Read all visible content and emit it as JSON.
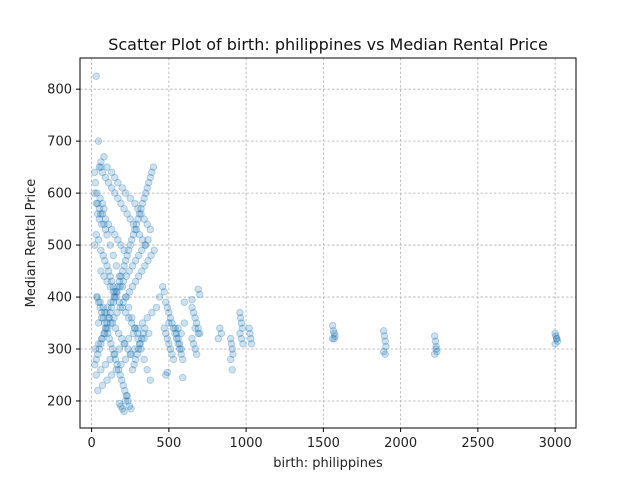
{
  "chart_data": {
    "type": "scatter",
    "title": "Scatter Plot of birth: philippines vs Median Rental Price",
    "xlabel": "birth: philippines",
    "ylabel": "Median Rental Price",
    "xlim": [
      -75,
      3135
    ],
    "ylim": [
      148,
      860
    ],
    "xticks": [
      0,
      500,
      1000,
      1500,
      2000,
      2500,
      3000
    ],
    "yticks": [
      200,
      300,
      400,
      500,
      600,
      700,
      800
    ],
    "grid": true,
    "marker_color": "#1f77b4",
    "marker_alpha": 0.22,
    "series": [
      {
        "x": [
          30,
          45,
          60,
          20,
          25,
          35,
          55,
          70,
          80,
          40,
          50,
          65,
          90,
          30,
          45,
          20,
          60,
          75,
          85,
          100,
          110,
          120,
          130,
          140,
          150,
          35,
          45,
          55,
          65,
          75,
          85,
          95,
          105,
          115,
          125,
          135,
          145,
          155,
          165,
          175,
          185,
          195,
          205,
          215,
          225,
          235,
          245,
          255,
          265,
          275,
          285,
          295,
          305,
          315,
          325,
          335,
          345,
          20,
          40,
          60,
          80,
          100,
          120,
          140,
          160,
          180,
          200,
          220,
          240,
          260,
          280,
          300,
          320,
          340,
          360,
          380,
          50,
          70,
          90,
          110,
          130,
          150,
          170,
          190,
          210,
          230,
          250,
          270,
          290,
          310,
          330,
          350,
          25,
          45,
          65,
          85,
          105,
          125,
          145,
          165,
          185,
          205,
          225,
          245,
          265,
          285,
          305,
          325,
          345,
          365,
          385,
          405,
          30,
          60,
          90,
          120,
          150,
          180,
          210,
          240,
          270,
          300,
          330,
          360,
          390,
          420,
          60,
          80,
          100,
          120,
          140,
          160,
          180,
          200,
          220,
          240,
          260,
          280,
          300,
          40,
          70,
          100,
          130,
          160,
          190,
          220,
          250,
          280,
          310,
          340,
          370,
          30,
          50,
          70,
          90,
          110,
          130,
          150,
          170,
          190,
          210,
          35,
          55,
          75,
          95,
          115,
          135,
          155,
          175,
          195,
          215,
          235,
          255,
          20,
          30,
          40,
          50,
          60,
          70,
          80,
          90,
          100,
          110,
          120,
          130,
          140,
          150,
          160,
          170,
          180,
          190,
          200,
          210,
          220,
          230,
          240,
          250,
          260,
          270,
          280,
          290,
          300,
          310,
          320,
          330,
          340,
          350,
          360,
          370,
          380,
          390,
          400,
          45,
          65,
          85,
          105,
          125,
          145,
          165,
          185,
          205,
          225,
          245,
          265,
          285,
          305,
          325,
          345,
          365,
          180,
          190,
          200,
          210,
          220,
          230,
          60,
          80,
          100,
          130,
          150,
          170,
          200,
          220,
          250,
          280,
          300,
          320,
          340,
          360,
          380,
          440,
          460,
          470,
          480,
          490,
          500,
          510,
          520,
          530,
          540,
          550,
          560,
          570,
          580,
          590,
          600,
          470,
          480,
          490,
          500,
          510,
          520,
          530,
          540,
          550,
          560,
          570,
          580,
          590,
          480,
          490,
          500,
          560,
          580,
          600,
          650,
          660,
          670,
          680,
          690,
          700,
          650,
          660,
          670,
          680,
          690,
          700,
          650,
          670,
          690,
          820,
          830,
          840,
          900,
          905,
          910,
          915,
          900,
          910,
          960,
          965,
          970,
          975,
          960,
          970,
          980,
          1020,
          1025,
          1030,
          1035,
          1560,
          1565,
          1570,
          1575,
          1560,
          1570,
          1890,
          1895,
          1900,
          1905,
          1890,
          1900,
          2220,
          2225,
          2230,
          2235,
          2220,
          2230,
          3000,
          3005,
          3010,
          3015,
          3000,
          3010
        ],
        "y": [
          825,
          700,
          650,
          640,
          620,
          600,
          590,
          580,
          570,
          560,
          550,
          540,
          530,
          520,
          510,
          500,
          490,
          480,
          470,
          460,
          450,
          440,
          430,
          420,
          410,
          400,
          390,
          380,
          370,
          360,
          350,
          340,
          330,
          320,
          310,
          300,
          290,
          280,
          270,
          260,
          250,
          240,
          230,
          220,
          210,
          200,
          190,
          185,
          260,
          270,
          280,
          290,
          300,
          310,
          320,
          330,
          340,
          600,
          580,
          560,
          540,
          520,
          500,
          480,
          460,
          440,
          420,
          400,
          380,
          360,
          340,
          320,
          300,
          280,
          260,
          240,
          650,
          640,
          630,
          620,
          610,
          600,
          590,
          580,
          570,
          560,
          550,
          540,
          530,
          520,
          510,
          500,
          300,
          310,
          320,
          330,
          340,
          350,
          360,
          370,
          380,
          390,
          400,
          410,
          420,
          430,
          440,
          450,
          460,
          470,
          480,
          490,
          250,
          260,
          270,
          280,
          290,
          300,
          310,
          320,
          330,
          340,
          350,
          360,
          370,
          380,
          450,
          440,
          430,
          420,
          410,
          400,
          390,
          380,
          370,
          360,
          350,
          340,
          330,
          220,
          230,
          240,
          250,
          260,
          270,
          280,
          290,
          300,
          310,
          320,
          330,
          580,
          570,
          560,
          550,
          540,
          530,
          520,
          510,
          500,
          490,
          400,
          390,
          380,
          370,
          360,
          350,
          340,
          330,
          320,
          310,
          300,
          290,
          270,
          280,
          290,
          300,
          310,
          320,
          330,
          340,
          350,
          360,
          370,
          380,
          390,
          400,
          410,
          420,
          430,
          440,
          450,
          460,
          470,
          480,
          490,
          500,
          510,
          520,
          530,
          540,
          550,
          560,
          570,
          580,
          590,
          600,
          610,
          620,
          630,
          640,
          650,
          350,
          360,
          370,
          380,
          390,
          400,
          410,
          420,
          430,
          440,
          450,
          460,
          470,
          480,
          490,
          500,
          510,
          195,
          190,
          185,
          180,
          200,
          210,
          660,
          670,
          650,
          640,
          630,
          620,
          610,
          600,
          590,
          580,
          570,
          560,
          550,
          540,
          530,
          400,
          420,
          410,
          390,
          380,
          370,
          360,
          350,
          340,
          330,
          320,
          310,
          300,
          290,
          280,
          350,
          340,
          330,
          320,
          310,
          300,
          290,
          280,
          340,
          330,
          320,
          310,
          300,
          245,
          250,
          255,
          350,
          340,
          330,
          390,
          380,
          370,
          360,
          350,
          340,
          330,
          320,
          310,
          300,
          290,
          415,
          405,
          395,
          340,
          330,
          320,
          340,
          330,
          320,
          310,
          300,
          290,
          280,
          260,
          370,
          360,
          350,
          340,
          330,
          320,
          310,
          340,
          330,
          320,
          310,
          345,
          335,
          330,
          325,
          320,
          320,
          335,
          325,
          315,
          305,
          295,
          290,
          325,
          315,
          305,
          295,
          290,
          300,
          330,
          325,
          320,
          315,
          310,
          320
        ]
      }
    ]
  }
}
